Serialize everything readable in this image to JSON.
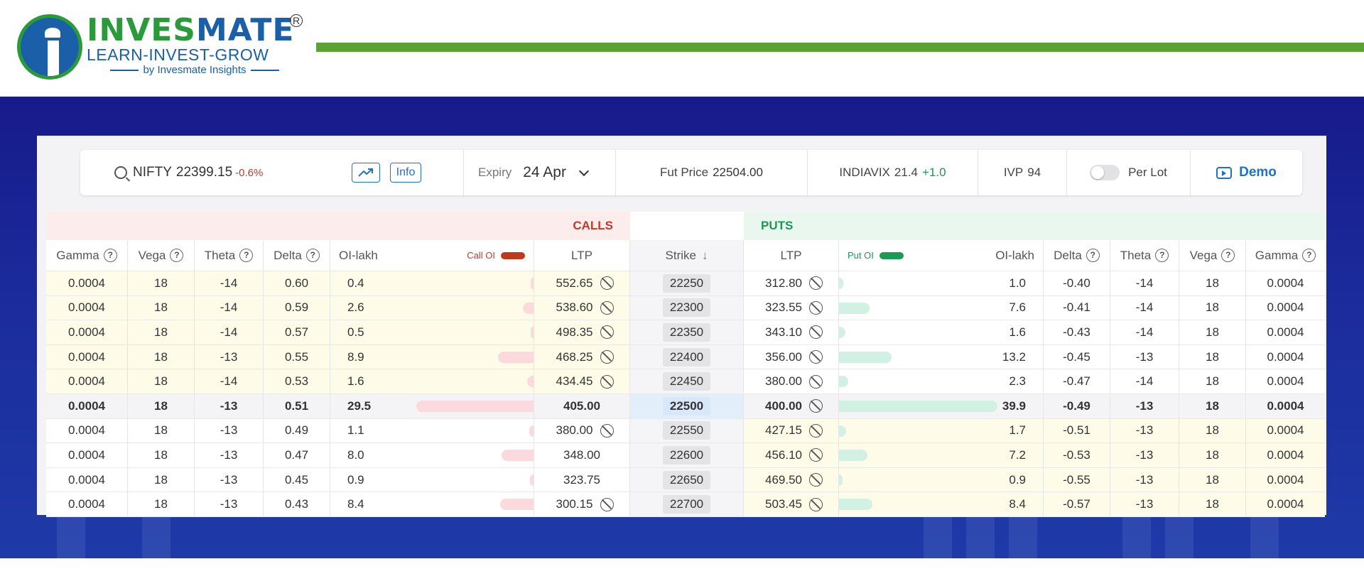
{
  "brand": {
    "name_part1": "INVES",
    "name_part2": "MATE",
    "registered": "R",
    "tagline": "LEARN-INVEST-GROW",
    "byline": "by Invesmate Insights"
  },
  "toolbar": {
    "symbol": "NIFTY",
    "spot": "22399.15",
    "change": "-0.6%",
    "info_label": "Info",
    "expiry_label": "Expiry",
    "expiry_value": "24 Apr",
    "fut_label": "Fut Price",
    "fut_value": "22504.00",
    "vix_label": "INDIAVIX",
    "vix_value": "21.4",
    "vix_change": "+1.0",
    "ivp_label": "IVP",
    "ivp_value": "94",
    "perlot_label": "Per Lot",
    "demo_label": "Demo"
  },
  "colors": {
    "calls": "#c0392b",
    "puts": "#1a9a52",
    "accent": "#1a73c8",
    "brand_green": "#5aa332",
    "brand_blue": "#1a5fa8"
  },
  "chain": {
    "calls_label": "CALLS",
    "puts_label": "PUTS",
    "call_oi_label": "Call OI",
    "put_oi_label": "Put OI",
    "headers": {
      "gamma": "Gamma",
      "vega": "Vega",
      "theta": "Theta",
      "delta": "Delta",
      "oi_lakh": "OI-lakh",
      "ltp": "LTP",
      "strike": "Strike"
    },
    "rows": [
      {
        "strike": "22250",
        "c_gamma": "0.0004",
        "c_vega": "18",
        "c_theta": "-14",
        "c_delta": "0.60",
        "c_oi": "0.4",
        "c_ltp": "552.65",
        "c_illiquid": true,
        "p_ltp": "312.80",
        "p_illiquid": true,
        "p_oi": "1.0",
        "p_delta": "-0.40",
        "p_theta": "-14",
        "p_vega": "18",
        "p_gamma": "0.0004",
        "c_itm": true,
        "p_itm": false,
        "atm": false
      },
      {
        "strike": "22300",
        "c_gamma": "0.0004",
        "c_vega": "18",
        "c_theta": "-14",
        "c_delta": "0.59",
        "c_oi": "2.6",
        "c_ltp": "538.60",
        "c_illiquid": true,
        "p_ltp": "323.55",
        "p_illiquid": true,
        "p_oi": "7.6",
        "p_delta": "-0.41",
        "p_theta": "-14",
        "p_vega": "18",
        "p_gamma": "0.0004",
        "c_itm": true,
        "p_itm": false,
        "atm": false
      },
      {
        "strike": "22350",
        "c_gamma": "0.0004",
        "c_vega": "18",
        "c_theta": "-14",
        "c_delta": "0.57",
        "c_oi": "0.5",
        "c_ltp": "498.35",
        "c_illiquid": true,
        "p_ltp": "343.10",
        "p_illiquid": true,
        "p_oi": "1.6",
        "p_delta": "-0.43",
        "p_theta": "-14",
        "p_vega": "18",
        "p_gamma": "0.0004",
        "c_itm": true,
        "p_itm": false,
        "atm": false
      },
      {
        "strike": "22400",
        "c_gamma": "0.0004",
        "c_vega": "18",
        "c_theta": "-13",
        "c_delta": "0.55",
        "c_oi": "8.9",
        "c_ltp": "468.25",
        "c_illiquid": true,
        "p_ltp": "356.00",
        "p_illiquid": true,
        "p_oi": "13.2",
        "p_delta": "-0.45",
        "p_theta": "-13",
        "p_vega": "18",
        "p_gamma": "0.0004",
        "c_itm": true,
        "p_itm": false,
        "atm": false
      },
      {
        "strike": "22450",
        "c_gamma": "0.0004",
        "c_vega": "18",
        "c_theta": "-14",
        "c_delta": "0.53",
        "c_oi": "1.6",
        "c_ltp": "434.45",
        "c_illiquid": true,
        "p_ltp": "380.00",
        "p_illiquid": true,
        "p_oi": "2.3",
        "p_delta": "-0.47",
        "p_theta": "-14",
        "p_vega": "18",
        "p_gamma": "0.0004",
        "c_itm": true,
        "p_itm": false,
        "atm": false
      },
      {
        "strike": "22500",
        "c_gamma": "0.0004",
        "c_vega": "18",
        "c_theta": "-13",
        "c_delta": "0.51",
        "c_oi": "29.5",
        "c_ltp": "405.00",
        "c_illiquid": false,
        "p_ltp": "400.00",
        "p_illiquid": true,
        "p_oi": "39.9",
        "p_delta": "-0.49",
        "p_theta": "-13",
        "p_vega": "18",
        "p_gamma": "0.0004",
        "c_itm": false,
        "p_itm": false,
        "atm": true
      },
      {
        "strike": "22550",
        "c_gamma": "0.0004",
        "c_vega": "18",
        "c_theta": "-13",
        "c_delta": "0.49",
        "c_oi": "1.1",
        "c_ltp": "380.00",
        "c_illiquid": true,
        "p_ltp": "427.15",
        "p_illiquid": true,
        "p_oi": "1.7",
        "p_delta": "-0.51",
        "p_theta": "-13",
        "p_vega": "18",
        "p_gamma": "0.0004",
        "c_itm": false,
        "p_itm": true,
        "atm": false
      },
      {
        "strike": "22600",
        "c_gamma": "0.0004",
        "c_vega": "18",
        "c_theta": "-13",
        "c_delta": "0.47",
        "c_oi": "8.0",
        "c_ltp": "348.00",
        "c_illiquid": false,
        "p_ltp": "456.10",
        "p_illiquid": true,
        "p_oi": "7.2",
        "p_delta": "-0.53",
        "p_theta": "-13",
        "p_vega": "18",
        "p_gamma": "0.0004",
        "c_itm": false,
        "p_itm": true,
        "atm": false
      },
      {
        "strike": "22650",
        "c_gamma": "0.0004",
        "c_vega": "18",
        "c_theta": "-13",
        "c_delta": "0.45",
        "c_oi": "0.9",
        "c_ltp": "323.75",
        "c_illiquid": false,
        "p_ltp": "469.50",
        "p_illiquid": true,
        "p_oi": "0.9",
        "p_delta": "-0.55",
        "p_theta": "-13",
        "p_vega": "18",
        "p_gamma": "0.0004",
        "c_itm": false,
        "p_itm": true,
        "atm": false
      },
      {
        "strike": "22700",
        "c_gamma": "0.0004",
        "c_vega": "18",
        "c_theta": "-13",
        "c_delta": "0.43",
        "c_oi": "8.4",
        "c_ltp": "300.15",
        "c_illiquid": true,
        "p_ltp": "503.45",
        "p_illiquid": true,
        "p_oi": "8.4",
        "p_delta": "-0.57",
        "p_theta": "-13",
        "p_vega": "18",
        "p_gamma": "0.0004",
        "c_itm": false,
        "p_itm": true,
        "atm": false
      }
    ]
  }
}
